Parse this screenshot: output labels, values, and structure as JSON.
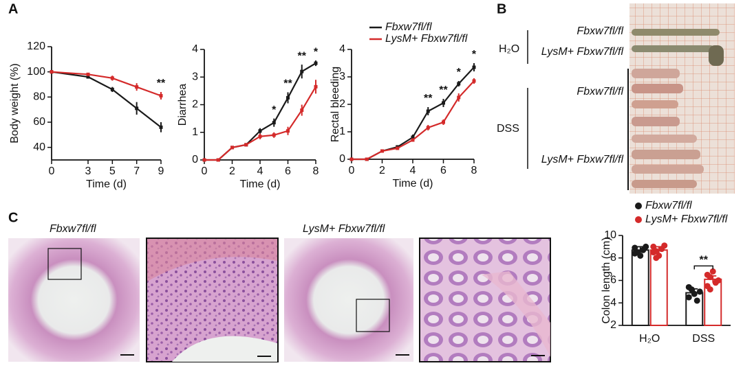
{
  "chart_data": [
    {
      "type": "line",
      "ylabel": "Body weight (%)",
      "xlabel": "Time (d)",
      "x": [
        0,
        3,
        5,
        7,
        9
      ],
      "xlim": [
        0,
        9
      ],
      "xticks": [
        0,
        3,
        5,
        7,
        9
      ],
      "ylim": [
        30,
        120
      ],
      "yticks": [
        40,
        60,
        80,
        100,
        120
      ],
      "series": [
        {
          "name": "Fbxw7fl/fl",
          "color": "#1a1a1a",
          "values": [
            100,
            96,
            86,
            71,
            56
          ],
          "errors": [
            0,
            1,
            2,
            5,
            4
          ]
        },
        {
          "name": "LysM+ Fbxw7fl/fl",
          "color": "#d42a2a",
          "values": [
            100,
            98,
            95,
            88,
            81
          ],
          "errors": [
            0,
            1,
            2,
            3,
            3
          ]
        }
      ],
      "annotations": [
        {
          "x": 9,
          "text": "**"
        }
      ]
    },
    {
      "type": "line",
      "ylabel": "Diarrhea",
      "xlabel": "Time (d)",
      "x": [
        0,
        1,
        2,
        3,
        4,
        5,
        6,
        7,
        8
      ],
      "xlim": [
        0,
        8
      ],
      "xticks": [
        0,
        2,
        4,
        6,
        8
      ],
      "ylim": [
        0,
        4
      ],
      "yticks": [
        0,
        1,
        2,
        3,
        4
      ],
      "series": [
        {
          "name": "Fbxw7fl/fl",
          "color": "#1a1a1a",
          "values": [
            0,
            0,
            0.45,
            0.55,
            1.05,
            1.35,
            2.25,
            3.2,
            3.5
          ],
          "errors": [
            0,
            0,
            0.05,
            0.05,
            0.1,
            0.15,
            0.2,
            0.25,
            0.1
          ]
        },
        {
          "name": "LysM+ Fbxw7fl/fl",
          "color": "#d42a2a",
          "values": [
            0,
            0,
            0.45,
            0.55,
            0.85,
            0.9,
            1.05,
            1.8,
            2.65
          ],
          "errors": [
            0,
            0,
            0.05,
            0.05,
            0.1,
            0.1,
            0.15,
            0.2,
            0.25
          ]
        }
      ],
      "annotations": [
        {
          "x": 5,
          "text": "*"
        },
        {
          "x": 6,
          "text": "**"
        },
        {
          "x": 7,
          "text": "**"
        },
        {
          "x": 8,
          "text": "*"
        }
      ]
    },
    {
      "type": "line",
      "ylabel": "Rectal bleeding",
      "xlabel": "Time (d)",
      "legend": "top",
      "x": [
        0,
        1,
        2,
        3,
        4,
        5,
        6,
        7,
        8
      ],
      "xlim": [
        0,
        8
      ],
      "xticks": [
        0,
        2,
        4,
        6,
        8
      ],
      "ylim": [
        0,
        4
      ],
      "yticks": [
        0,
        1,
        2,
        3,
        4
      ],
      "series": [
        {
          "name": "Fbxw7fl/fl",
          "color": "#1a1a1a",
          "values": [
            0,
            0,
            0.3,
            0.45,
            0.8,
            1.75,
            2.05,
            2.75,
            3.35
          ],
          "errors": [
            0,
            0,
            0.05,
            0.05,
            0.1,
            0.15,
            0.15,
            0.1,
            0.15
          ]
        },
        {
          "name": "LysM+ Fbxw7fl/fl",
          "color": "#d42a2a",
          "values": [
            0,
            0,
            0.3,
            0.4,
            0.7,
            1.15,
            1.35,
            2.25,
            2.85
          ],
          "errors": [
            0,
            0,
            0.05,
            0.05,
            0.05,
            0.1,
            0.1,
            0.15,
            0.1
          ]
        }
      ],
      "annotations": [
        {
          "x": 5,
          "text": "**"
        },
        {
          "x": 6,
          "text": "**"
        },
        {
          "x": 7,
          "text": "*"
        },
        {
          "x": 8,
          "text": "*"
        }
      ]
    },
    {
      "type": "bar",
      "ylabel": "Colon length (cm)",
      "legend": "top",
      "categories": [
        "H₂O",
        "DSS"
      ],
      "ylim": [
        2,
        10
      ],
      "yticks": [
        2,
        4,
        6,
        8,
        10
      ],
      "series": [
        {
          "name": "Fbxw7fl/fl",
          "color": "#1a1a1a",
          "values": [
            8.7,
            4.9
          ],
          "errors": [
            0.3,
            0.35
          ],
          "points": [
            [
              8.9,
              8.5,
              8.2,
              8.7,
              9.0,
              8.4
            ],
            [
              4.5,
              5.2,
              4.8,
              4.2,
              5.0,
              5.4
            ]
          ]
        },
        {
          "name": "LysM+ Fbxw7fl/fl",
          "color": "#d42a2a",
          "values": [
            8.7,
            6.1
          ],
          "errors": [
            0.3,
            0.3
          ],
          "points": [
            [
              9.0,
              8.6,
              8.2,
              8.8,
              9.1,
              8.5,
              8.0
            ],
            [
              5.5,
              6.3,
              6.8,
              5.8,
              6.0,
              6.5,
              5.2
            ]
          ]
        }
      ],
      "annotations": [
        {
          "x": 1,
          "text": "**"
        }
      ]
    }
  ],
  "panels": {
    "a": "A",
    "b": "B",
    "c": "C"
  },
  "photo_labels": {
    "h2o": "H₂O",
    "dss": "DSS",
    "h2o_wt": "Fbxw7fl/fl",
    "h2o_ko": "LysM+ Fbxw7fl/fl",
    "dss_wt": "Fbxw7fl/fl",
    "dss_ko": "LysM+ Fbxw7fl/fl"
  },
  "histology_labels": {
    "wt": "Fbxw7fl/fl",
    "ko": "LysM+ Fbxw7fl/fl"
  }
}
